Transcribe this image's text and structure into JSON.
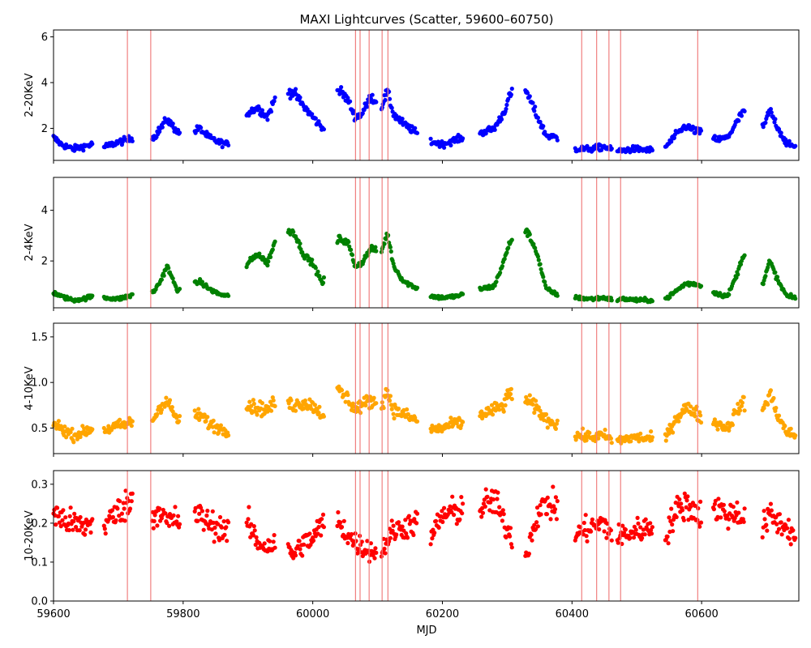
{
  "chart_data": {
    "type": "scatter",
    "title": "MAXI Lightcurves (Scatter, 59600–60750)",
    "xlabel": "MJD",
    "xlim": [
      59600,
      60750
    ],
    "x_ticks": [
      59600,
      59800,
      60000,
      60200,
      60400,
      60600
    ],
    "vertical_lines_mjd": [
      59714,
      59750,
      60066,
      60073,
      60087,
      60107,
      60116,
      60415,
      60438,
      60457,
      60475,
      60594
    ],
    "vertical_line_color": "#f08080",
    "panels": [
      {
        "ylabel": "2-20KeV",
        "color": "#0000ff",
        "ylim": [
          0.6,
          6.3
        ],
        "y_ticks": [
          2,
          4,
          6
        ],
        "y_tick_labels": [
          "2",
          "4",
          "6"
        ],
        "anchors": [
          [
            59600,
            1.6
          ],
          [
            59612,
            1.3
          ],
          [
            59630,
            1.1
          ],
          [
            59645,
            1.2
          ],
          [
            59660,
            1.3
          ],
          [
            59680,
            1.2
          ],
          [
            59700,
            1.4
          ],
          [
            59715,
            1.5
          ],
          [
            59730,
            1.7
          ],
          [
            59755,
            1.6
          ],
          [
            59765,
            2.0
          ],
          [
            59775,
            2.4
          ],
          [
            59790,
            1.9
          ],
          [
            59800,
            1.6
          ],
          [
            59825,
            2.0
          ],
          [
            59840,
            1.6
          ],
          [
            59855,
            1.4
          ],
          [
            59868,
            1.3
          ],
          [
            59900,
            2.7
          ],
          [
            59915,
            2.9
          ],
          [
            59930,
            2.5
          ],
          [
            59945,
            3.5
          ],
          [
            59970,
            3.6
          ],
          [
            59985,
            3.0
          ],
          [
            60000,
            2.5
          ],
          [
            60015,
            2.0
          ],
          [
            60040,
            3.7
          ],
          [
            60055,
            3.2
          ],
          [
            60065,
            2.5
          ],
          [
            60075,
            2.6
          ],
          [
            60090,
            3.4
          ],
          [
            60105,
            2.9
          ],
          [
            60115,
            3.6
          ],
          [
            60125,
            2.6
          ],
          [
            60140,
            2.2
          ],
          [
            60155,
            1.9
          ],
          [
            60170,
            1.6
          ],
          [
            60185,
            1.4
          ],
          [
            60200,
            1.3
          ],
          [
            60220,
            1.5
          ],
          [
            60235,
            1.6
          ],
          [
            60260,
            1.8
          ],
          [
            60280,
            2.0
          ],
          [
            60295,
            2.7
          ],
          [
            60305,
            3.5
          ],
          [
            60330,
            3.6
          ],
          [
            60345,
            2.6
          ],
          [
            60360,
            1.7
          ],
          [
            60375,
            1.6
          ],
          [
            60405,
            1.1
          ],
          [
            60430,
            1.1
          ],
          [
            60450,
            1.2
          ],
          [
            60465,
            1.0
          ],
          [
            60480,
            1.05
          ],
          [
            60500,
            1.1
          ],
          [
            60520,
            1.05
          ],
          [
            60545,
            1.2
          ],
          [
            60560,
            1.7
          ],
          [
            60575,
            2.1
          ],
          [
            60590,
            1.9
          ],
          [
            60600,
            1.8
          ],
          [
            60625,
            1.5
          ],
          [
            60640,
            1.6
          ],
          [
            60655,
            2.3
          ],
          [
            60665,
            2.8
          ],
          [
            60695,
            2.0
          ],
          [
            60705,
            2.8
          ],
          [
            60720,
            1.9
          ],
          [
            60732,
            1.3
          ],
          [
            60745,
            1.2
          ]
        ],
        "spread": 0.15
      },
      {
        "ylabel": "2-4KeV",
        "color": "#008000",
        "ylim": [
          0.15,
          5.3
        ],
        "y_ticks": [
          2,
          4
        ],
        "y_tick_labels": [
          "2",
          "4"
        ],
        "anchors": [
          [
            59600,
            0.75
          ],
          [
            59612,
            0.6
          ],
          [
            59630,
            0.45
          ],
          [
            59645,
            0.5
          ],
          [
            59660,
            0.6
          ],
          [
            59680,
            0.55
          ],
          [
            59700,
            0.5
          ],
          [
            59715,
            0.6
          ],
          [
            59730,
            0.7
          ],
          [
            59755,
            0.8
          ],
          [
            59765,
            1.2
          ],
          [
            59775,
            1.8
          ],
          [
            59790,
            0.9
          ],
          [
            59800,
            0.8
          ],
          [
            59825,
            1.2
          ],
          [
            59840,
            0.9
          ],
          [
            59855,
            0.7
          ],
          [
            59868,
            0.6
          ],
          [
            59900,
            1.9
          ],
          [
            59915,
            2.3
          ],
          [
            59930,
            1.9
          ],
          [
            59945,
            3.0
          ],
          [
            59970,
            3.2
          ],
          [
            59985,
            2.3
          ],
          [
            60000,
            1.9
          ],
          [
            60015,
            1.1
          ],
          [
            60040,
            2.9
          ],
          [
            60055,
            2.7
          ],
          [
            60065,
            1.8
          ],
          [
            60075,
            1.9
          ],
          [
            60090,
            2.5
          ],
          [
            60105,
            2.3
          ],
          [
            60115,
            3.1
          ],
          [
            60125,
            1.8
          ],
          [
            60140,
            1.2
          ],
          [
            60155,
            1.0
          ],
          [
            60170,
            0.8
          ],
          [
            60185,
            0.6
          ],
          [
            60200,
            0.55
          ],
          [
            60220,
            0.6
          ],
          [
            60235,
            0.7
          ],
          [
            60260,
            0.9
          ],
          [
            60280,
            1.0
          ],
          [
            60295,
            2.0
          ],
          [
            60305,
            2.8
          ],
          [
            60330,
            3.2
          ],
          [
            60345,
            2.4
          ],
          [
            60360,
            0.9
          ],
          [
            60375,
            0.7
          ],
          [
            60405,
            0.55
          ],
          [
            60430,
            0.5
          ],
          [
            60450,
            0.55
          ],
          [
            60465,
            0.45
          ],
          [
            60480,
            0.5
          ],
          [
            60500,
            0.45
          ],
          [
            60520,
            0.45
          ],
          [
            60545,
            0.5
          ],
          [
            60560,
            0.8
          ],
          [
            60575,
            1.1
          ],
          [
            60590,
            1.1
          ],
          [
            60600,
            1.0
          ],
          [
            60625,
            0.7
          ],
          [
            60640,
            0.6
          ],
          [
            60655,
            1.5
          ],
          [
            60665,
            2.3
          ],
          [
            60695,
            1.1
          ],
          [
            60705,
            2.0
          ],
          [
            60720,
            1.1
          ],
          [
            60732,
            0.6
          ],
          [
            60745,
            0.55
          ]
        ],
        "spread": 0.1
      },
      {
        "ylabel": "4-10KeV",
        "color": "#ffa500",
        "ylim": [
          0.22,
          1.65
        ],
        "y_ticks": [
          0.5,
          1.0,
          1.5
        ],
        "y_tick_labels": [
          "0.5",
          "1.0",
          "1.5"
        ],
        "anchors": [
          [
            59600,
            0.55
          ],
          [
            59612,
            0.5
          ],
          [
            59630,
            0.42
          ],
          [
            59645,
            0.45
          ],
          [
            59660,
            0.5
          ],
          [
            59680,
            0.48
          ],
          [
            59700,
            0.52
          ],
          [
            59715,
            0.55
          ],
          [
            59730,
            0.58
          ],
          [
            59755,
            0.6
          ],
          [
            59765,
            0.75
          ],
          [
            59775,
            0.8
          ],
          [
            59790,
            0.6
          ],
          [
            59800,
            0.55
          ],
          [
            59825,
            0.65
          ],
          [
            59840,
            0.55
          ],
          [
            59855,
            0.5
          ],
          [
            59868,
            0.47
          ],
          [
            59900,
            0.75
          ],
          [
            59915,
            0.72
          ],
          [
            59930,
            0.7
          ],
          [
            59945,
            0.8
          ],
          [
            59970,
            0.75
          ],
          [
            59985,
            0.78
          ],
          [
            60000,
            0.75
          ],
          [
            60015,
            0.65
          ],
          [
            60040,
            0.9
          ],
          [
            60055,
            0.82
          ],
          [
            60065,
            0.7
          ],
          [
            60075,
            0.75
          ],
          [
            60090,
            0.8
          ],
          [
            60105,
            0.75
          ],
          [
            60115,
            0.9
          ],
          [
            60125,
            0.7
          ],
          [
            60140,
            0.65
          ],
          [
            60155,
            0.6
          ],
          [
            60170,
            0.55
          ],
          [
            60185,
            0.48
          ],
          [
            60200,
            0.5
          ],
          [
            60220,
            0.55
          ],
          [
            60235,
            0.55
          ],
          [
            60260,
            0.65
          ],
          [
            60280,
            0.7
          ],
          [
            60295,
            0.75
          ],
          [
            60305,
            0.9
          ],
          [
            60330,
            0.8
          ],
          [
            60345,
            0.72
          ],
          [
            60360,
            0.6
          ],
          [
            60375,
            0.55
          ],
          [
            60405,
            0.42
          ],
          [
            60430,
            0.4
          ],
          [
            60450,
            0.42
          ],
          [
            60465,
            0.35
          ],
          [
            60480,
            0.38
          ],
          [
            60500,
            0.4
          ],
          [
            60520,
            0.38
          ],
          [
            60545,
            0.4
          ],
          [
            60560,
            0.6
          ],
          [
            60575,
            0.72
          ],
          [
            60590,
            0.68
          ],
          [
            60600,
            0.6
          ],
          [
            60625,
            0.55
          ],
          [
            60640,
            0.5
          ],
          [
            60655,
            0.7
          ],
          [
            60665,
            0.78
          ],
          [
            60695,
            0.7
          ],
          [
            60705,
            0.88
          ],
          [
            60720,
            0.6
          ],
          [
            60732,
            0.45
          ],
          [
            60745,
            0.42
          ]
        ],
        "spread": 0.06
      },
      {
        "ylabel": "10-20KeV",
        "color": "#ff0000",
        "ylim": [
          0.0,
          0.335
        ],
        "y_ticks": [
          0.0,
          0.1,
          0.2,
          0.3
        ],
        "y_tick_labels": [
          "0.0",
          "0.1",
          "0.2",
          "0.3"
        ],
        "anchors": [
          [
            59600,
            0.23
          ],
          [
            59612,
            0.21
          ],
          [
            59630,
            0.2
          ],
          [
            59645,
            0.19
          ],
          [
            59660,
            0.2
          ],
          [
            59680,
            0.2
          ],
          [
            59700,
            0.23
          ],
          [
            59715,
            0.25
          ],
          [
            59730,
            0.27
          ],
          [
            59755,
            0.22
          ],
          [
            59765,
            0.24
          ],
          [
            59775,
            0.2
          ],
          [
            59790,
            0.21
          ],
          [
            59800,
            0.2
          ],
          [
            59825,
            0.22
          ],
          [
            59840,
            0.2
          ],
          [
            59855,
            0.19
          ],
          [
            59868,
            0.18
          ],
          [
            59900,
            0.2
          ],
          [
            59915,
            0.15
          ],
          [
            59930,
            0.14
          ],
          [
            59945,
            0.15
          ],
          [
            59970,
            0.12
          ],
          [
            59985,
            0.15
          ],
          [
            60000,
            0.16
          ],
          [
            60015,
            0.2
          ],
          [
            60040,
            0.2
          ],
          [
            60055,
            0.17
          ],
          [
            60065,
            0.15
          ],
          [
            60075,
            0.14
          ],
          [
            60090,
            0.13
          ],
          [
            60105,
            0.12
          ],
          [
            60115,
            0.16
          ],
          [
            60125,
            0.18
          ],
          [
            60140,
            0.19
          ],
          [
            60155,
            0.2
          ],
          [
            60170,
            0.19
          ],
          [
            60185,
            0.17
          ],
          [
            60200,
            0.22
          ],
          [
            60220,
            0.23
          ],
          [
            60235,
            0.24
          ],
          [
            60260,
            0.24
          ],
          [
            60280,
            0.26
          ],
          [
            60295,
            0.2
          ],
          [
            60305,
            0.17
          ],
          [
            60330,
            0.12
          ],
          [
            60345,
            0.22
          ],
          [
            60360,
            0.25
          ],
          [
            60375,
            0.24
          ],
          [
            60405,
            0.17
          ],
          [
            60430,
            0.19
          ],
          [
            60450,
            0.2
          ],
          [
            60465,
            0.16
          ],
          [
            60480,
            0.17
          ],
          [
            60500,
            0.18
          ],
          [
            60520,
            0.19
          ],
          [
            60545,
            0.17
          ],
          [
            60560,
            0.23
          ],
          [
            60575,
            0.25
          ],
          [
            60590,
            0.23
          ],
          [
            60600,
            0.22
          ],
          [
            60625,
            0.24
          ],
          [
            60640,
            0.22
          ],
          [
            60655,
            0.23
          ],
          [
            60665,
            0.21
          ],
          [
            60695,
            0.19
          ],
          [
            60705,
            0.22
          ],
          [
            60720,
            0.2
          ],
          [
            60732,
            0.19
          ],
          [
            60745,
            0.16
          ]
        ],
        "spread": 0.025
      }
    ]
  }
}
